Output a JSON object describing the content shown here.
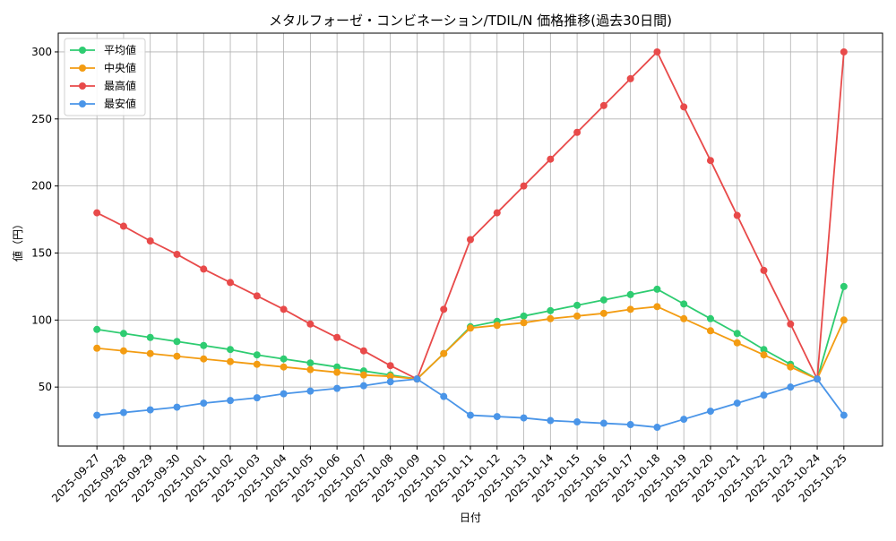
{
  "chart_data": {
    "type": "line",
    "title": "メタルフォーゼ・コンビネーション/TDIL/N 価格推移(過去30日間)",
    "x_label": "日付",
    "y_label": "値（円）",
    "categories": [
      "2025-09-27",
      "2025-09-28",
      "2025-09-29",
      "2025-09-30",
      "2025-10-01",
      "2025-10-02",
      "2025-10-03",
      "2025-10-04",
      "2025-10-05",
      "2025-10-06",
      "2025-10-07",
      "2025-10-08",
      "2025-10-09",
      "2025-10-10",
      "2025-10-11",
      "2025-10-12",
      "2025-10-13",
      "2025-10-14",
      "2025-10-15",
      "2025-10-16",
      "2025-10-17",
      "2025-10-18",
      "2025-10-19",
      "2025-10-20",
      "2025-10-21",
      "2025-10-22",
      "2025-10-23",
      "2025-10-24",
      "2025-10-25"
    ],
    "series": [
      {
        "name": "平均値",
        "color": "#2ecc71",
        "values": [
          93,
          90,
          87,
          84,
          81,
          78,
          74,
          71,
          68,
          65,
          62,
          59,
          56,
          75,
          95,
          99,
          103,
          107,
          111,
          115,
          119,
          123,
          112,
          101,
          90,
          78,
          67,
          56,
          125
        ]
      },
      {
        "name": "中央値",
        "color": "#f39c12",
        "values": [
          79,
          77,
          75,
          73,
          71,
          69,
          67,
          65,
          63,
          61,
          59,
          58,
          56,
          75,
          94,
          96,
          98,
          101,
          103,
          105,
          108,
          110,
          101,
          92,
          83,
          74,
          65,
          56,
          100
        ]
      },
      {
        "name": "最高値",
        "color": "#e84a4a",
        "values": [
          180,
          170,
          159,
          149,
          138,
          128,
          118,
          108,
          97,
          87,
          77,
          66,
          56,
          108,
          160,
          180,
          200,
          220,
          240,
          260,
          280,
          300,
          259,
          219,
          178,
          137,
          97,
          56,
          300
        ]
      },
      {
        "name": "最安値",
        "color": "#4a95e8",
        "values": [
          29,
          31,
          33,
          35,
          38,
          40,
          42,
          45,
          47,
          49,
          51,
          54,
          56,
          43,
          29,
          28,
          27,
          25,
          24,
          23,
          22,
          20,
          26,
          32,
          38,
          44,
          50,
          56,
          29
        ]
      }
    ],
    "ylim": [
      6,
      314
    ],
    "yticks": [
      50,
      100,
      150,
      200,
      250,
      300
    ],
    "grid": true,
    "legend": "upper-left"
  }
}
